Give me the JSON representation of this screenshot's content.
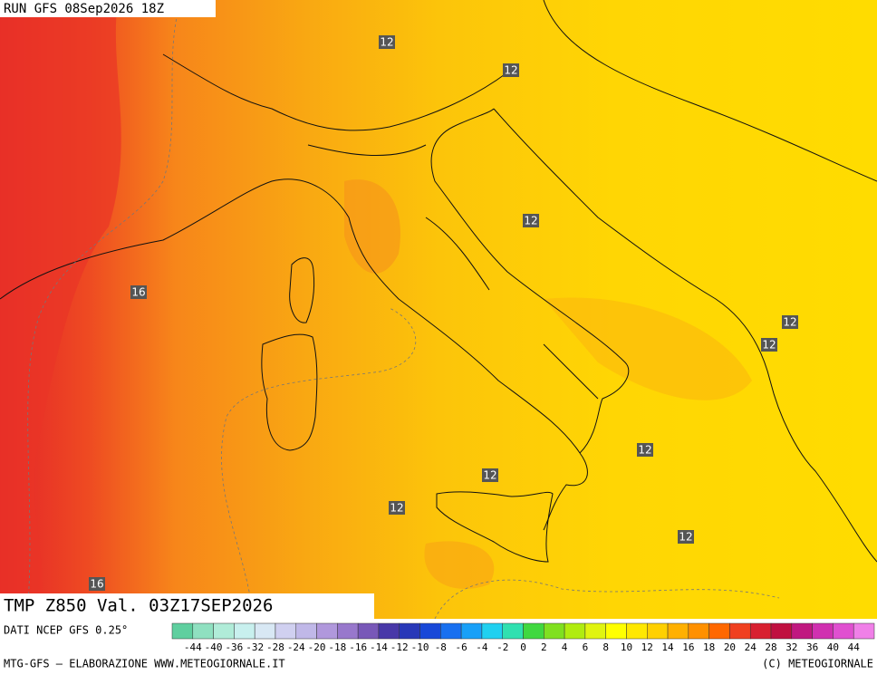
{
  "header": {
    "run": "RUN GFS 08Sep2026 18Z"
  },
  "map": {
    "contour_labels": [
      "12",
      "12",
      "12",
      "12",
      "12",
      "12",
      "12",
      "12",
      "12",
      "16",
      "16"
    ]
  },
  "footer": {
    "title": "TMP Z850 Val. 03Z17SEP2026",
    "source": "DATI NCEP GFS 0.25°",
    "colorbar_labels": [
      "-44",
      "-40",
      "-36",
      "-32",
      "-28",
      "-24",
      "-20",
      "-18",
      "-16",
      "-14",
      "-12",
      "-10",
      "-8",
      "-6",
      "-4",
      "-2",
      "0",
      "2",
      "4",
      "6",
      "8",
      "10",
      "12",
      "14",
      "16",
      "18",
      "20",
      "24",
      "28",
      "32",
      "36",
      "40",
      "44"
    ],
    "credit": "MTG-GFS — ELABORAZIONE WWW.METEOGIORNALE.IT",
    "copyright": "(C) METEOGIORNALE"
  }
}
